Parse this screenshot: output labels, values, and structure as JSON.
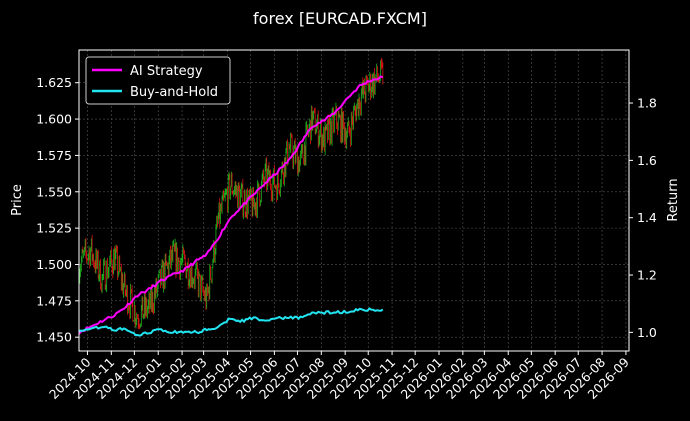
{
  "chart_data": {
    "type": "line",
    "title": "forex [EURCAD.FXCM]",
    "xlabel": "",
    "ylabel": "Price",
    "y2label": "Return",
    "x_range": [
      "2024-09-20",
      "2026-09-05"
    ],
    "ylim": [
      1.4405,
      1.6475
    ],
    "y2lim": [
      0.935,
      1.985
    ],
    "x_ticks": [
      "2024-10",
      "2024-11",
      "2024-12",
      "2025-01",
      "2025-02",
      "2025-03",
      "2025-04",
      "2025-05",
      "2025-06",
      "2025-07",
      "2025-08",
      "2025-09",
      "2025-10",
      "2025-11",
      "2025-12",
      "2026-01",
      "2026-02",
      "2026-03",
      "2026-04",
      "2026-05",
      "2026-06",
      "2026-07",
      "2026-08",
      "2026-09"
    ],
    "y_ticks": [
      "1.450",
      "1.475",
      "1.500",
      "1.525",
      "1.550",
      "1.575",
      "1.600",
      "1.625"
    ],
    "y2_ticks": [
      "1.0",
      "1.2",
      "1.4",
      "1.6",
      "1.8"
    ],
    "grid": true,
    "legend_position": "top-left",
    "colors": {
      "ai_strategy": "#ff00ff",
      "buy_and_hold": "#22e5f2",
      "candle_up": "#1db31d",
      "candle_down": "#e01414",
      "grid": "#555555"
    },
    "series": [
      {
        "name": "AI Strategy",
        "axis": "right",
        "x": [
          "2024-09-20",
          "2024-10-05",
          "2024-10-20",
          "2024-11-05",
          "2024-11-20",
          "2024-12-05",
          "2024-12-20",
          "2025-01-05",
          "2025-01-20",
          "2025-02-05",
          "2025-02-20",
          "2025-03-05",
          "2025-03-20",
          "2025-04-05",
          "2025-04-20",
          "2025-05-05",
          "2025-05-20",
          "2025-06-05",
          "2025-06-20",
          "2025-07-05",
          "2025-07-20",
          "2025-08-05",
          "2025-08-20",
          "2025-09-05",
          "2025-09-20",
          "2025-10-05",
          "2025-10-20"
        ],
        "values": [
          1.0,
          1.02,
          1.04,
          1.06,
          1.09,
          1.13,
          1.15,
          1.18,
          1.2,
          1.22,
          1.25,
          1.27,
          1.33,
          1.4,
          1.44,
          1.48,
          1.52,
          1.56,
          1.6,
          1.66,
          1.72,
          1.74,
          1.77,
          1.82,
          1.86,
          1.88,
          1.89
        ]
      },
      {
        "name": "Buy-and-Hold",
        "axis": "right",
        "x": [
          "2024-09-20",
          "2024-10-05",
          "2024-10-20",
          "2024-11-05",
          "2024-11-20",
          "2024-12-05",
          "2024-12-20",
          "2025-01-05",
          "2025-01-20",
          "2025-02-05",
          "2025-02-20",
          "2025-03-05",
          "2025-03-20",
          "2025-04-05",
          "2025-04-20",
          "2025-05-05",
          "2025-05-20",
          "2025-06-05",
          "2025-06-20",
          "2025-07-05",
          "2025-07-20",
          "2025-08-05",
          "2025-08-20",
          "2025-09-05",
          "2025-09-20",
          "2025-10-05",
          "2025-10-20"
        ],
        "values": [
          1.01,
          1.01,
          1.02,
          1.01,
          1.01,
          0.99,
          1.0,
          1.01,
          1.0,
          1.0,
          1.0,
          1.01,
          1.02,
          1.05,
          1.04,
          1.05,
          1.04,
          1.05,
          1.05,
          1.05,
          1.07,
          1.07,
          1.07,
          1.07,
          1.08,
          1.08,
          1.08
        ]
      }
    ],
    "candlesticks": {
      "axis": "left",
      "dates": [
        "2024-09-20",
        "2024-10-05",
        "2024-10-20",
        "2024-11-05",
        "2024-11-20",
        "2024-12-05",
        "2024-12-20",
        "2025-01-05",
        "2025-01-20",
        "2025-02-05",
        "2025-02-20",
        "2025-03-05",
        "2025-03-20",
        "2025-04-05",
        "2025-04-20",
        "2025-05-05",
        "2025-05-20",
        "2025-06-05",
        "2025-06-20",
        "2025-07-05",
        "2025-07-20",
        "2025-08-05",
        "2025-08-20",
        "2025-09-05",
        "2025-09-20",
        "2025-10-05",
        "2025-10-20"
      ],
      "close": [
        1.5,
        1.51,
        1.49,
        1.505,
        1.48,
        1.465,
        1.47,
        1.49,
        1.505,
        1.5,
        1.49,
        1.475,
        1.53,
        1.555,
        1.545,
        1.54,
        1.56,
        1.555,
        1.58,
        1.57,
        1.6,
        1.585,
        1.6,
        1.59,
        1.615,
        1.625,
        1.63
      ]
    }
  }
}
